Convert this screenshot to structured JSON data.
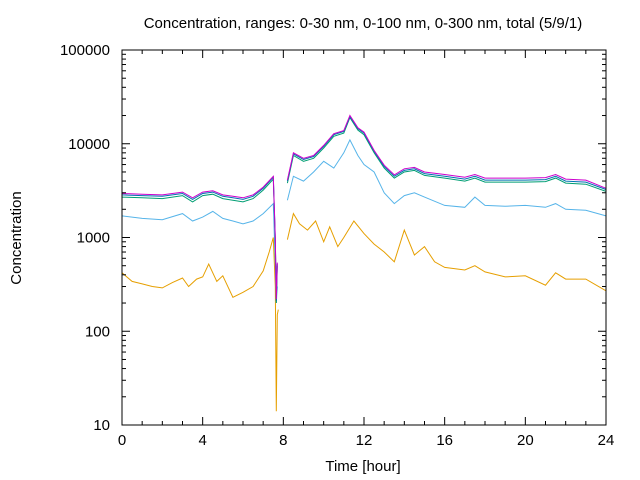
{
  "chart_data": {
    "type": "line",
    "title": "Concentration, ranges: 0-30 nm, 0-100 nm, 0-300 nm, total (5/9/1)",
    "xlabel": "Time [hour]",
    "ylabel": "Concentration",
    "xlim": [
      0,
      24
    ],
    "ylim": [
      10,
      100000
    ],
    "yscale": "log",
    "grid": false,
    "legend": "none",
    "xticks": [
      "0",
      "4",
      "8",
      "12",
      "16",
      "20",
      "24"
    ],
    "yticks": [
      "10",
      "100",
      "1000",
      "10000",
      "100000"
    ],
    "series": [
      {
        "color": "#e69f00",
        "points": [
          [
            0.0,
            420
          ],
          [
            0.5,
            340
          ],
          [
            1.0,
            320
          ],
          [
            1.5,
            300
          ],
          [
            2.0,
            290
          ],
          [
            2.5,
            330
          ],
          [
            3.0,
            370
          ],
          [
            3.3,
            300
          ],
          [
            3.7,
            360
          ],
          [
            4.0,
            380
          ],
          [
            4.3,
            520
          ],
          [
            4.7,
            340
          ],
          [
            5.0,
            390
          ],
          [
            5.5,
            230
          ],
          [
            6.0,
            260
          ],
          [
            6.5,
            300
          ],
          [
            7.0,
            440
          ],
          [
            7.3,
            700
          ],
          [
            7.5,
            1000
          ],
          [
            7.6,
            300
          ],
          [
            7.65,
            14
          ],
          [
            7.7,
            150
          ],
          [
            7.75,
            170
          ],
          [
            7.8,
            null
          ],
          [
            8.2,
            950
          ],
          [
            8.5,
            1800
          ],
          [
            8.8,
            1400
          ],
          [
            9.2,
            1200
          ],
          [
            9.6,
            1500
          ],
          [
            10.0,
            900
          ],
          [
            10.3,
            1300
          ],
          [
            10.7,
            800
          ],
          [
            11.0,
            1000
          ],
          [
            11.5,
            1500
          ],
          [
            12.0,
            1100
          ],
          [
            12.5,
            850
          ],
          [
            13.0,
            700
          ],
          [
            13.5,
            550
          ],
          [
            14.0,
            1200
          ],
          [
            14.5,
            650
          ],
          [
            15.0,
            800
          ],
          [
            15.5,
            550
          ],
          [
            16.0,
            480
          ],
          [
            17.0,
            450
          ],
          [
            17.5,
            500
          ],
          [
            18.0,
            430
          ],
          [
            19.0,
            380
          ],
          [
            20.0,
            390
          ],
          [
            21.0,
            310
          ],
          [
            21.5,
            420
          ],
          [
            22.0,
            360
          ],
          [
            23.0,
            360
          ],
          [
            24.0,
            270
          ]
        ]
      },
      {
        "color": "#56b4e9",
        "points": [
          [
            0.0,
            1700
          ],
          [
            1.0,
            1600
          ],
          [
            2.0,
            1550
          ],
          [
            3.0,
            1800
          ],
          [
            3.5,
            1500
          ],
          [
            4.0,
            1650
          ],
          [
            4.5,
            1900
          ],
          [
            5.0,
            1600
          ],
          [
            5.5,
            1500
          ],
          [
            6.0,
            1400
          ],
          [
            6.5,
            1500
          ],
          [
            7.0,
            1800
          ],
          [
            7.5,
            2300
          ],
          [
            7.6,
            500
          ],
          [
            7.65,
            200
          ],
          [
            7.7,
            300
          ],
          [
            7.8,
            null
          ],
          [
            8.2,
            2500
          ],
          [
            8.5,
            4500
          ],
          [
            9.0,
            4000
          ],
          [
            9.5,
            5000
          ],
          [
            10.0,
            6500
          ],
          [
            10.5,
            5500
          ],
          [
            11.0,
            8000
          ],
          [
            11.3,
            11000
          ],
          [
            11.7,
            7500
          ],
          [
            12.0,
            6000
          ],
          [
            12.5,
            5000
          ],
          [
            13.0,
            3000
          ],
          [
            13.5,
            2300
          ],
          [
            14.0,
            2800
          ],
          [
            14.5,
            3000
          ],
          [
            15.0,
            2700
          ],
          [
            16.0,
            2200
          ],
          [
            17.0,
            2100
          ],
          [
            17.5,
            2700
          ],
          [
            18.0,
            2200
          ],
          [
            19.0,
            2150
          ],
          [
            20.0,
            2200
          ],
          [
            21.0,
            2100
          ],
          [
            21.5,
            2300
          ],
          [
            22.0,
            2000
          ],
          [
            23.0,
            1950
          ],
          [
            24.0,
            1700
          ]
        ]
      },
      {
        "color": "#009e73",
        "points": [
          [
            0.0,
            2700
          ],
          [
            1.0,
            2650
          ],
          [
            2.0,
            2600
          ],
          [
            3.0,
            2800
          ],
          [
            3.5,
            2400
          ],
          [
            4.0,
            2800
          ],
          [
            4.5,
            2900
          ],
          [
            5.0,
            2600
          ],
          [
            5.5,
            2500
          ],
          [
            6.0,
            2400
          ],
          [
            6.5,
            2600
          ],
          [
            7.0,
            3200
          ],
          [
            7.5,
            4200
          ],
          [
            7.6,
            900
          ],
          [
            7.65,
            200
          ],
          [
            7.7,
            500
          ],
          [
            7.8,
            null
          ],
          [
            8.2,
            3800
          ],
          [
            8.5,
            7500
          ],
          [
            9.0,
            6500
          ],
          [
            9.5,
            7000
          ],
          [
            10.0,
            9000
          ],
          [
            10.5,
            12000
          ],
          [
            11.0,
            13000
          ],
          [
            11.3,
            19000
          ],
          [
            11.7,
            14000
          ],
          [
            12.0,
            12500
          ],
          [
            12.5,
            8000
          ],
          [
            13.0,
            5500
          ],
          [
            13.5,
            4300
          ],
          [
            14.0,
            5000
          ],
          [
            14.5,
            5200
          ],
          [
            15.0,
            4600
          ],
          [
            16.0,
            4300
          ],
          [
            17.0,
            4000
          ],
          [
            17.5,
            4300
          ],
          [
            18.0,
            3900
          ],
          [
            19.0,
            3900
          ],
          [
            20.0,
            3900
          ],
          [
            21.0,
            3950
          ],
          [
            21.5,
            4300
          ],
          [
            22.0,
            3800
          ],
          [
            23.0,
            3700
          ],
          [
            24.0,
            3100
          ]
        ]
      },
      {
        "color": "#0072b2",
        "points": [
          [
            0.0,
            2850
          ],
          [
            1.0,
            2800
          ],
          [
            2.0,
            2750
          ],
          [
            3.0,
            2950
          ],
          [
            3.5,
            2550
          ],
          [
            4.0,
            2950
          ],
          [
            4.5,
            3050
          ],
          [
            5.0,
            2750
          ],
          [
            5.5,
            2650
          ],
          [
            6.0,
            2550
          ],
          [
            6.5,
            2750
          ],
          [
            7.0,
            3350
          ],
          [
            7.5,
            4400
          ],
          [
            7.6,
            950
          ],
          [
            7.65,
            210
          ],
          [
            7.7,
            520
          ],
          [
            7.8,
            null
          ],
          [
            8.2,
            4000
          ],
          [
            8.5,
            7800
          ],
          [
            9.0,
            6800
          ],
          [
            9.5,
            7300
          ],
          [
            10.0,
            9400
          ],
          [
            10.5,
            12500
          ],
          [
            11.0,
            13500
          ],
          [
            11.3,
            19500
          ],
          [
            11.7,
            14500
          ],
          [
            12.0,
            13000
          ],
          [
            12.5,
            8300
          ],
          [
            13.0,
            5700
          ],
          [
            13.5,
            4500
          ],
          [
            14.0,
            5200
          ],
          [
            14.5,
            5400
          ],
          [
            15.0,
            4800
          ],
          [
            16.0,
            4500
          ],
          [
            17.0,
            4200
          ],
          [
            17.5,
            4500
          ],
          [
            18.0,
            4100
          ],
          [
            19.0,
            4100
          ],
          [
            20.0,
            4100
          ],
          [
            21.0,
            4150
          ],
          [
            21.5,
            4500
          ],
          [
            22.0,
            4000
          ],
          [
            23.0,
            3900
          ],
          [
            24.0,
            3250
          ]
        ]
      },
      {
        "color": "#cc00cc",
        "points": [
          [
            0.0,
            2950
          ],
          [
            1.0,
            2900
          ],
          [
            2.0,
            2850
          ],
          [
            3.0,
            3050
          ],
          [
            3.5,
            2650
          ],
          [
            4.0,
            3050
          ],
          [
            4.5,
            3150
          ],
          [
            5.0,
            2850
          ],
          [
            5.5,
            2750
          ],
          [
            6.0,
            2650
          ],
          [
            6.5,
            2850
          ],
          [
            7.0,
            3450
          ],
          [
            7.5,
            4500
          ],
          [
            7.6,
            1000
          ],
          [
            7.65,
            220
          ],
          [
            7.7,
            540
          ],
          [
            7.8,
            null
          ],
          [
            8.2,
            4100
          ],
          [
            8.5,
            8000
          ],
          [
            9.0,
            7000
          ],
          [
            9.5,
            7500
          ],
          [
            10.0,
            9600
          ],
          [
            10.5,
            12800
          ],
          [
            11.0,
            13800
          ],
          [
            11.3,
            20000
          ],
          [
            11.7,
            14800
          ],
          [
            12.0,
            13300
          ],
          [
            12.5,
            8500
          ],
          [
            13.0,
            5900
          ],
          [
            13.5,
            4650
          ],
          [
            14.0,
            5400
          ],
          [
            14.5,
            5600
          ],
          [
            15.0,
            5000
          ],
          [
            16.0,
            4700
          ],
          [
            17.0,
            4400
          ],
          [
            17.5,
            4700
          ],
          [
            18.0,
            4300
          ],
          [
            19.0,
            4300
          ],
          [
            20.0,
            4300
          ],
          [
            21.0,
            4350
          ],
          [
            21.5,
            4700
          ],
          [
            22.0,
            4200
          ],
          [
            23.0,
            4100
          ],
          [
            24.0,
            3350
          ]
        ]
      }
    ]
  }
}
